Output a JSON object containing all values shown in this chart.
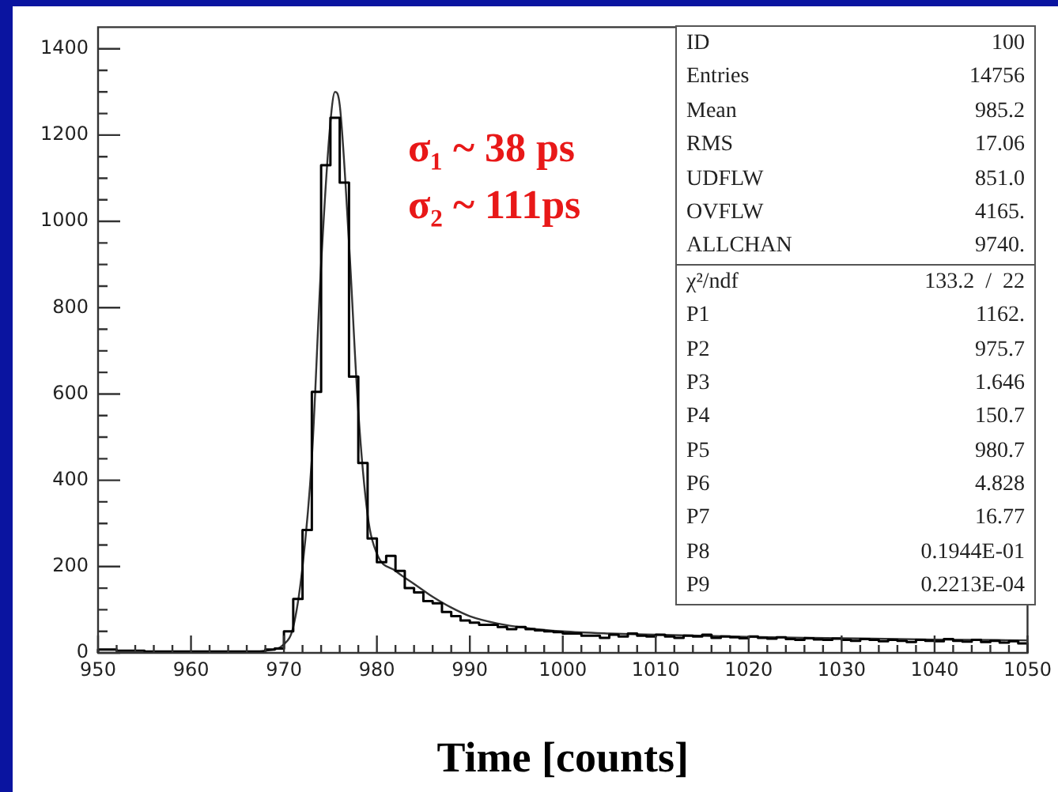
{
  "chart_data": {
    "type": "histogram",
    "xlabel": "Time [counts]",
    "bins": [
      950,
      951,
      952,
      953,
      954,
      955,
      956,
      957,
      958,
      959,
      960,
      961,
      962,
      963,
      964,
      965,
      966,
      967,
      968,
      969,
      970,
      971,
      972,
      973,
      974,
      975,
      976,
      977,
      978,
      979,
      980,
      981,
      982,
      983,
      984,
      985,
      986,
      987,
      988,
      989,
      990,
      991,
      992,
      993,
      994,
      995,
      996,
      997,
      998,
      999,
      1000,
      1001,
      1002,
      1003,
      1004,
      1005,
      1006,
      1007,
      1008,
      1009,
      1010,
      1011,
      1012,
      1013,
      1014,
      1015,
      1016,
      1017,
      1018,
      1019,
      1020,
      1021,
      1022,
      1023,
      1024,
      1025,
      1026,
      1027,
      1028,
      1029,
      1030,
      1031,
      1032,
      1033,
      1034,
      1035,
      1036,
      1037,
      1038,
      1039,
      1040,
      1041,
      1042,
      1043,
      1044,
      1045,
      1046,
      1047,
      1048,
      1049,
      1050
    ],
    "values": [
      8,
      8,
      5,
      5,
      5,
      3,
      3,
      3,
      3,
      3,
      3,
      3,
      3,
      3,
      3,
      3,
      3,
      3,
      8,
      10,
      50,
      125,
      285,
      605,
      1130,
      1240,
      1090,
      640,
      440,
      265,
      210,
      225,
      190,
      150,
      140,
      120,
      115,
      95,
      85,
      75,
      70,
      65,
      65,
      60,
      55,
      60,
      55,
      52,
      50,
      48,
      45,
      45,
      40,
      40,
      35,
      42,
      38,
      45,
      40,
      38,
      42,
      38,
      35,
      40,
      38,
      42,
      35,
      38,
      36,
      34,
      38,
      35,
      33,
      36,
      32,
      30,
      34,
      31,
      30,
      33,
      30,
      28,
      32,
      30,
      27,
      30,
      28,
      25,
      30,
      28,
      27,
      32,
      28,
      26,
      30,
      25,
      28,
      24,
      27,
      22
    ],
    "color": "#000000",
    "series": [
      {
        "type": "line",
        "color": "#333333",
        "x": [
          965,
          968,
          970,
          971,
          972,
          973,
          974,
          975,
          975.5,
          976,
          977,
          978,
          979,
          980,
          982,
          984,
          986,
          988,
          990,
          993,
          996,
          1000,
          1005,
          1010,
          1020,
          1030,
          1040,
          1050
        ],
        "values": [
          0,
          5,
          20,
          60,
          200,
          450,
          900,
          1230,
          1300,
          1270,
          950,
          560,
          320,
          230,
          190,
          160,
          130,
          105,
          85,
          68,
          58,
          50,
          45,
          42,
          37,
          34,
          31,
          29
        ]
      }
    ],
    "xlim": [
      950,
      1050
    ],
    "xticks": [
      950,
      {
        "value": 952,
        "label": null
      },
      {
        "value": 954,
        "label": null
      },
      {
        "value": 956,
        "label": null
      },
      {
        "value": 958,
        "label": null
      },
      960,
      {
        "value": 962,
        "label": null
      },
      {
        "value": 964,
        "label": null
      },
      {
        "value": 966,
        "label": null
      },
      {
        "value": 968,
        "label": null
      },
      970,
      {
        "value": 972,
        "label": null
      },
      {
        "value": 974,
        "label": null
      },
      {
        "value": 976,
        "label": null
      },
      {
        "value": 978,
        "label": null
      },
      980,
      {
        "value": 982,
        "label": null
      },
      {
        "value": 984,
        "label": null
      },
      {
        "value": 986,
        "label": null
      },
      {
        "value": 988,
        "label": null
      },
      990,
      {
        "value": 992,
        "label": null
      },
      {
        "value": 994,
        "label": null
      },
      {
        "value": 996,
        "label": null
      },
      {
        "value": 998,
        "label": null
      },
      1000,
      {
        "value": 1002,
        "label": null
      },
      {
        "value": 1004,
        "label": null
      },
      {
        "value": 1006,
        "label": null
      },
      {
        "value": 1008,
        "label": null
      },
      1010,
      {
        "value": 1012,
        "label": null
      },
      {
        "value": 1014,
        "label": null
      },
      {
        "value": 1016,
        "label": null
      },
      {
        "value": 1018,
        "label": null
      },
      1020,
      {
        "value": 1022,
        "label": null
      },
      {
        "value": 1024,
        "label": null
      },
      {
        "value": 1026,
        "label": null
      },
      {
        "value": 1028,
        "label": null
      },
      1030,
      {
        "value": 1032,
        "label": null
      },
      {
        "value": 1034,
        "label": null
      },
      {
        "value": 1036,
        "label": null
      },
      {
        "value": 1038,
        "label": null
      },
      1040,
      {
        "value": 1042,
        "label": null
      },
      {
        "value": 1044,
        "label": null
      },
      {
        "value": 1046,
        "label": null
      },
      {
        "value": 1048,
        "label": null
      },
      1050
    ],
    "ylim": [
      0,
      1450
    ],
    "yticks": [
      0,
      {
        "value": 50,
        "label": null
      },
      {
        "value": 100,
        "label": null
      },
      {
        "value": 150,
        "label": null
      },
      200,
      {
        "value": 250,
        "label": null
      },
      {
        "value": 300,
        "label": null
      },
      {
        "value": 350,
        "label": null
      },
      400,
      {
        "value": 450,
        "label": null
      },
      {
        "value": 500,
        "label": null
      },
      {
        "value": 550,
        "label": null
      },
      600,
      {
        "value": 650,
        "label": null
      },
      {
        "value": 700,
        "label": null
      },
      {
        "value": 750,
        "label": null
      },
      800,
      {
        "value": 850,
        "label": null
      },
      {
        "value": 900,
        "label": null
      },
      {
        "value": 950,
        "label": null
      },
      1000,
      {
        "value": 1050,
        "label": null
      },
      {
        "value": 1100,
        "label": null
      },
      {
        "value": 1150,
        "label": null
      },
      1200,
      {
        "value": 1250,
        "label": null
      },
      {
        "value": 1300,
        "label": null
      },
      {
        "value": 1350,
        "label": null
      },
      1400
    ],
    "annotations": [
      "σ₁ ~ 38 ps",
      "σ₂ ~ 111ps",
      "ID 100",
      "Entries 14756",
      "Mean 985.2",
      "RMS 17.06",
      "UDFLW 851.0",
      "OVFLW 4165.",
      "ALLCHAN 9740.",
      "χ²/ndf 133.2  /  22",
      "P1 1162.",
      "P2 975.7",
      "P3 1.646",
      "P4 150.7",
      "P5 980.7",
      "P6 4.828",
      "P7 16.77",
      "P8 0.1944E-01",
      "P9 0.2213E-04"
    ]
  }
}
